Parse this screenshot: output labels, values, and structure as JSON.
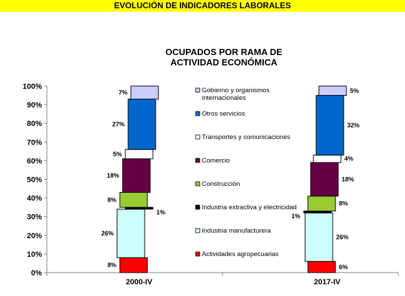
{
  "header": {
    "banner": "EVOLUCIÓN DE INDICADORES LABORALES"
  },
  "chart_data": {
    "type": "bar",
    "subtype": "stacked-waterfall",
    "title_lines": [
      "OCUPADOS POR RAMA DE",
      "ACTIVIDAD ECONÓMICA"
    ],
    "categories": [
      "2000-IV",
      "2017-IV"
    ],
    "ylim": [
      0,
      100
    ],
    "yticks": [
      "0%",
      "10%",
      "20%",
      "30%",
      "40%",
      "50%",
      "60%",
      "70%",
      "80%",
      "90%",
      "100%"
    ],
    "grid": false,
    "legend_position": "center",
    "series": [
      {
        "name": "Actividades agropecuarias",
        "color": "#ff0000",
        "values": [
          8,
          6
        ],
        "labels": [
          "8%",
          "6%"
        ]
      },
      {
        "name": "Industria manufacturera",
        "color": "#ccffff",
        "values": [
          26,
          26
        ],
        "labels": [
          "26%",
          "26%"
        ]
      },
      {
        "name": "Industria extractiva y electricidad",
        "color": "#000000",
        "values": [
          1,
          1
        ],
        "labels": [
          "1%",
          "1%"
        ]
      },
      {
        "name": "Construcción",
        "color": "#99cc33",
        "values": [
          8,
          8
        ],
        "labels": [
          "8%",
          "8%"
        ]
      },
      {
        "name": "Comercio",
        "color": "#660044",
        "values": [
          18,
          18
        ],
        "labels": [
          "18%",
          "18%"
        ]
      },
      {
        "name": "Transportes y comunicaciones",
        "color": "#ffffff",
        "values": [
          5,
          4
        ],
        "labels": [
          "5%",
          "4%"
        ]
      },
      {
        "name": "Otros servicios",
        "color": "#0066cc",
        "values": [
          27,
          32
        ],
        "labels": [
          "27%",
          "32%"
        ]
      },
      {
        "name": "Gobierno y organismos internacionales",
        "color": "#ccccff",
        "values": [
          7,
          5
        ],
        "labels": [
          "7%",
          "5%"
        ],
        "legend_lines": [
          "Gobierno y organismos",
          "internacionales"
        ]
      }
    ]
  }
}
